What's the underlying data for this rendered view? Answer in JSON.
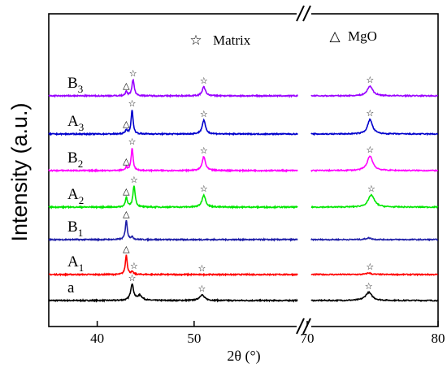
{
  "chart_data": {
    "type": "line",
    "title": "",
    "xlabel": "2θ (°)",
    "ylabel": "Intensity (a.u.)",
    "x_segments": [
      {
        "range": [
          35,
          61
        ],
        "ticks": [
          40,
          50
        ]
      },
      {
        "range": [
          70,
          80
        ],
        "ticks": [
          70,
          80
        ]
      }
    ],
    "axis_break": true,
    "legend": [
      {
        "symbol": "☆",
        "label": "Matrix"
      },
      {
        "symbol": "△",
        "label": "MgO"
      }
    ],
    "series": [
      {
        "name": "a",
        "sub": "",
        "color": "#000000",
        "peaks": [
          {
            "x": 43.6,
            "h": 20,
            "w": 0.18
          },
          {
            "x": 44.4,
            "h": 6,
            "w": 0.3
          },
          {
            "x": 50.8,
            "h": 7,
            "w": 0.3
          },
          {
            "x": 74.7,
            "h": 10,
            "w": 0.3
          }
        ],
        "markers": [
          {
            "x": 43.6,
            "symbol": "☆"
          },
          {
            "x": 50.8,
            "symbol": "☆"
          },
          {
            "x": 74.7,
            "symbol": "☆"
          }
        ]
      },
      {
        "name": "A",
        "sub": "1",
        "color": "#ff0000",
        "peaks": [
          {
            "x": 43.0,
            "h": 24,
            "w": 0.12
          },
          {
            "x": 43.6,
            "h": 3,
            "w": 0.15
          },
          {
            "x": 74.7,
            "h": 2,
            "w": 0.2
          }
        ],
        "markers": [
          {
            "x": 43.0,
            "symbol": "△"
          },
          {
            "x": 43.8,
            "symbol": "☆"
          },
          {
            "x": 50.8,
            "symbol": "☆"
          },
          {
            "x": 74.8,
            "symbol": "☆"
          }
        ]
      },
      {
        "name": "B",
        "sub": "1",
        "color": "#1f1fa8",
        "peaks": [
          {
            "x": 43.0,
            "h": 24,
            "w": 0.12
          },
          {
            "x": 43.6,
            "h": 3,
            "w": 0.15
          },
          {
            "x": 74.7,
            "h": 2,
            "w": 0.25
          }
        ],
        "markers": [
          {
            "x": 43.0,
            "symbol": "△"
          }
        ]
      },
      {
        "name": "A",
        "sub": "2",
        "color": "#00e600",
        "peaks": [
          {
            "x": 43.0,
            "h": 12,
            "w": 0.12
          },
          {
            "x": 43.8,
            "h": 26,
            "w": 0.14
          },
          {
            "x": 51.0,
            "h": 15,
            "w": 0.22
          },
          {
            "x": 74.9,
            "h": 15,
            "w": 0.28
          }
        ],
        "markers": [
          {
            "x": 43.0,
            "symbol": "△"
          },
          {
            "x": 43.8,
            "symbol": "☆"
          },
          {
            "x": 51.0,
            "symbol": "☆"
          },
          {
            "x": 74.9,
            "symbol": "☆"
          }
        ]
      },
      {
        "name": "B",
        "sub": "2",
        "color": "#ff00ff",
        "peaks": [
          {
            "x": 43.0,
            "h": 4,
            "w": 0.12
          },
          {
            "x": 43.6,
            "h": 28,
            "w": 0.12
          },
          {
            "x": 51.0,
            "h": 17,
            "w": 0.2
          },
          {
            "x": 74.8,
            "h": 18,
            "w": 0.25
          }
        ],
        "markers": [
          {
            "x": 43.0,
            "symbol": "△"
          },
          {
            "x": 43.6,
            "symbol": "☆"
          },
          {
            "x": 51.0,
            "symbol": "☆"
          },
          {
            "x": 74.8,
            "symbol": "☆"
          }
        ]
      },
      {
        "name": "A",
        "sub": "3",
        "color": "#0000cc",
        "peaks": [
          {
            "x": 43.0,
            "h": 5,
            "w": 0.12
          },
          {
            "x": 43.6,
            "h": 30,
            "w": 0.12
          },
          {
            "x": 51.0,
            "h": 17,
            "w": 0.2
          },
          {
            "x": 74.8,
            "h": 18,
            "w": 0.22
          }
        ],
        "markers": [
          {
            "x": 43.0,
            "symbol": "△"
          },
          {
            "x": 43.6,
            "symbol": "☆"
          },
          {
            "x": 51.0,
            "symbol": "☆"
          },
          {
            "x": 74.8,
            "symbol": "☆"
          }
        ]
      },
      {
        "name": "B",
        "sub": "3",
        "color": "#9900ff",
        "peaks": [
          {
            "x": 43.0,
            "h": 5,
            "w": 0.12
          },
          {
            "x": 43.7,
            "h": 20,
            "w": 0.14
          },
          {
            "x": 51.0,
            "h": 11,
            "w": 0.2
          },
          {
            "x": 74.8,
            "h": 12,
            "w": 0.25
          }
        ],
        "markers": [
          {
            "x": 43.0,
            "symbol": "△"
          },
          {
            "x": 43.7,
            "symbol": "☆"
          },
          {
            "x": 51.0,
            "symbol": "☆"
          },
          {
            "x": 74.8,
            "symbol": "☆"
          }
        ]
      }
    ]
  }
}
